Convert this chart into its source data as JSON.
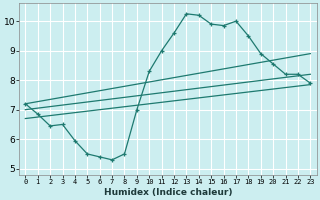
{
  "xlabel": "Humidex (Indice chaleur)",
  "background_color": "#cceef0",
  "grid_color": "#ffffff",
  "line_color": "#1e7a70",
  "xlim": [
    -0.5,
    23.5
  ],
  "ylim": [
    4.8,
    10.6
  ],
  "yticks": [
    5,
    6,
    7,
    8,
    9,
    10
  ],
  "xticks": [
    0,
    1,
    2,
    3,
    4,
    5,
    6,
    7,
    8,
    9,
    10,
    11,
    12,
    13,
    14,
    15,
    16,
    17,
    18,
    19,
    20,
    21,
    22,
    23
  ],
  "line1_x": [
    0,
    1,
    2,
    3,
    4,
    5,
    6,
    7,
    8,
    9,
    10,
    11,
    12,
    13,
    14,
    15,
    16,
    17,
    18,
    19,
    20,
    21,
    22,
    23
  ],
  "line1_y": [
    7.2,
    6.85,
    6.45,
    6.5,
    5.95,
    5.5,
    5.4,
    5.3,
    5.5,
    7.0,
    8.3,
    9.0,
    9.6,
    10.25,
    10.2,
    9.9,
    9.85,
    10.0,
    9.5,
    8.9,
    8.55,
    8.2,
    8.2,
    7.9
  ],
  "line2_x": [
    0,
    23
  ],
  "line2_y": [
    7.2,
    8.9
  ],
  "line3_x": [
    0,
    23
  ],
  "line3_y": [
    7.0,
    8.2
  ],
  "line4_x": [
    0,
    23
  ],
  "line4_y": [
    6.7,
    7.85
  ]
}
